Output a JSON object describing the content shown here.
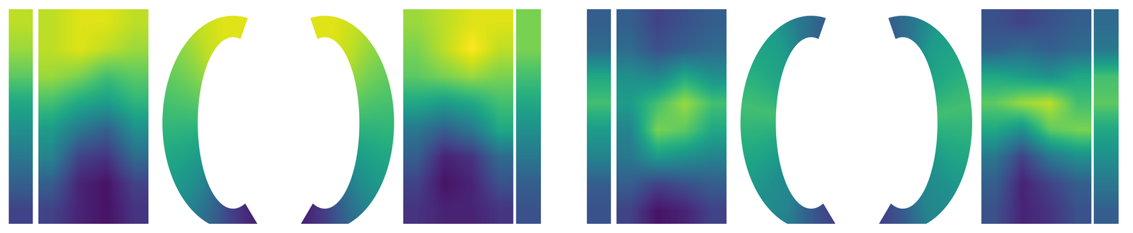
{
  "chart_data": [
    {
      "type": "heatmap",
      "tick_labels": false,
      "clim": [
        0,
        1
      ],
      "left_strip": [
        [
          0.9
        ],
        [
          0.85
        ],
        [
          0.75
        ],
        [
          0.6
        ],
        [
          0.5
        ],
        [
          0.4
        ],
        [
          0.3
        ],
        [
          0.2
        ]
      ],
      "left_map": [
        [
          0.9,
          0.95,
          0.95,
          0.9
        ],
        [
          0.9,
          0.95,
          0.9,
          0.85
        ],
        [
          0.85,
          0.8,
          0.7,
          0.75
        ],
        [
          0.7,
          0.6,
          0.55,
          0.65
        ],
        [
          0.55,
          0.4,
          0.3,
          0.5
        ],
        [
          0.45,
          0.2,
          0.15,
          0.35
        ],
        [
          0.3,
          0.1,
          0.05,
          0.2
        ],
        [
          0.2,
          0.1,
          0.05,
          0.15
        ]
      ],
      "left_surface": [
        0.95,
        0.95,
        0.9,
        0.8,
        0.7,
        0.6,
        0.5,
        0.35,
        0.2,
        0.1
      ],
      "right_surface": [
        0.95,
        0.95,
        0.9,
        0.8,
        0.7,
        0.6,
        0.5,
        0.35,
        0.2,
        0.1
      ],
      "right_map": [
        [
          0.85,
          0.9,
          0.95,
          0.95
        ],
        [
          0.8,
          0.9,
          1.0,
          0.9
        ],
        [
          0.75,
          0.8,
          0.85,
          0.8
        ],
        [
          0.6,
          0.55,
          0.6,
          0.7
        ],
        [
          0.4,
          0.3,
          0.4,
          0.6
        ],
        [
          0.3,
          0.1,
          0.15,
          0.35
        ],
        [
          0.2,
          0.05,
          0.1,
          0.25
        ],
        [
          0.15,
          0.1,
          0.1,
          0.15
        ]
      ],
      "right_strip": [
        [
          0.8
        ],
        [
          0.8
        ],
        [
          0.7
        ],
        [
          0.6
        ],
        [
          0.5
        ],
        [
          0.4
        ],
        [
          0.3
        ],
        [
          0.25
        ]
      ]
    },
    {
      "type": "heatmap",
      "tick_labels": false,
      "clim": [
        0,
        1
      ],
      "left_strip": [
        [
          0.3
        ],
        [
          0.35
        ],
        [
          0.6
        ],
        [
          0.7
        ],
        [
          0.55
        ],
        [
          0.45
        ],
        [
          0.3
        ],
        [
          0.25
        ]
      ],
      "left_map": [
        [
          0.3,
          0.2,
          0.25,
          0.3
        ],
        [
          0.35,
          0.25,
          0.3,
          0.35
        ],
        [
          0.5,
          0.45,
          0.6,
          0.5
        ],
        [
          0.55,
          0.7,
          0.85,
          0.7
        ],
        [
          0.45,
          0.8,
          0.75,
          0.6
        ],
        [
          0.4,
          0.55,
          0.5,
          0.45
        ],
        [
          0.3,
          0.2,
          0.25,
          0.3
        ],
        [
          0.2,
          0.05,
          0.1,
          0.2
        ]
      ],
      "left_surface": [
        0.3,
        0.4,
        0.55,
        0.6,
        0.7,
        0.6,
        0.5,
        0.45,
        0.3,
        0.2
      ],
      "right_surface": [
        0.3,
        0.4,
        0.55,
        0.6,
        0.7,
        0.6,
        0.5,
        0.45,
        0.3,
        0.2
      ],
      "right_map": [
        [
          0.25,
          0.2,
          0.25,
          0.3
        ],
        [
          0.3,
          0.35,
          0.3,
          0.35
        ],
        [
          0.6,
          0.55,
          0.5,
          0.6
        ],
        [
          0.75,
          0.85,
          0.9,
          0.7
        ],
        [
          0.6,
          0.5,
          0.75,
          0.8
        ],
        [
          0.4,
          0.2,
          0.4,
          0.5
        ],
        [
          0.3,
          0.1,
          0.2,
          0.3
        ],
        [
          0.25,
          0.1,
          0.15,
          0.25
        ]
      ],
      "right_strip": [
        [
          0.35
        ],
        [
          0.4
        ],
        [
          0.7
        ],
        [
          0.75
        ],
        [
          0.6
        ],
        [
          0.5
        ],
        [
          0.4
        ],
        [
          0.3
        ]
      ]
    }
  ]
}
